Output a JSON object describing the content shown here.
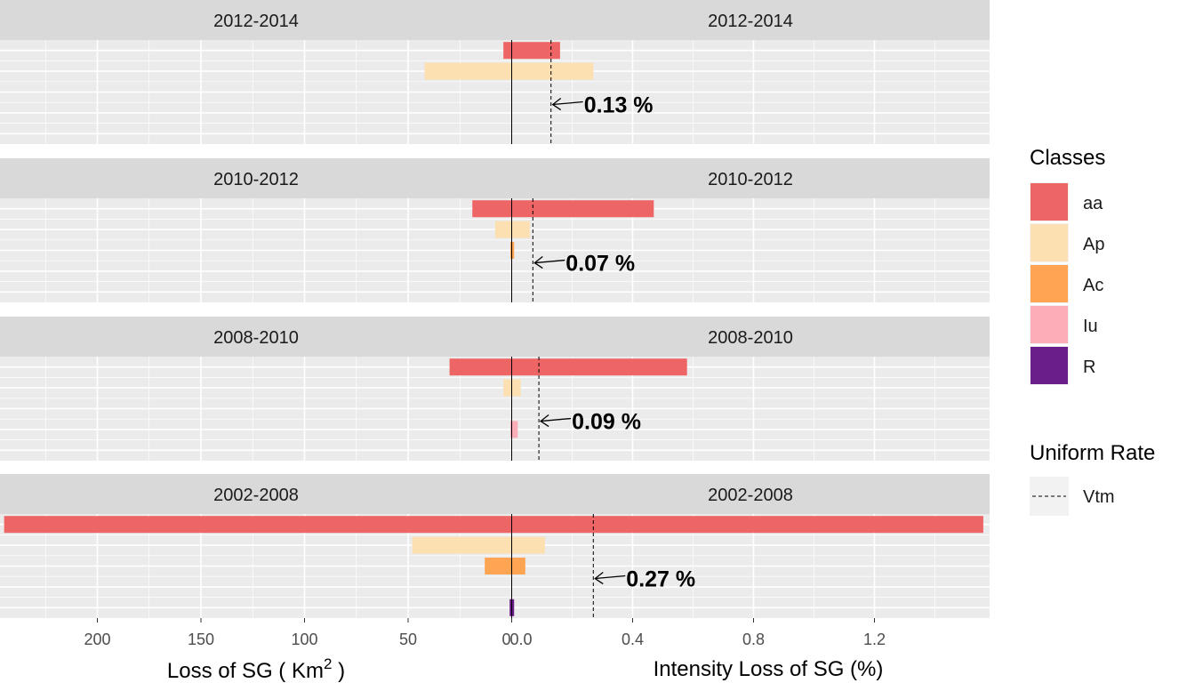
{
  "chart_data": {
    "type": "bar",
    "orientation": "horizontal",
    "layout": "back-to-back faceted",
    "classes": [
      {
        "name": "aa",
        "color": "#EE6566"
      },
      {
        "name": "Ap",
        "color": "#FDE0B2"
      },
      {
        "name": "Ac",
        "color": "#FEA452"
      },
      {
        "name": "Iu",
        "color": "#FDADB8"
      },
      {
        "name": "R",
        "color": "#6A1E8A"
      }
    ],
    "left_axis": {
      "label_prefix": "Loss of SG ( Km",
      "label_sup": "2",
      "label_suffix": " )",
      "ticks": [
        200,
        150,
        100,
        50,
        0
      ],
      "tick_labels": [
        "200",
        "150",
        "100",
        "50",
        "0"
      ],
      "range": [
        0,
        250
      ]
    },
    "right_axis": {
      "label": "Intensity Loss of SG (%)",
      "ticks": [
        0.0,
        0.4,
        0.8,
        1.2
      ],
      "tick_labels": [
        "0.0",
        "0.4",
        "0.8",
        "1.2"
      ],
      "range": [
        0,
        1.55
      ]
    },
    "panels": [
      {
        "period": "2012-2014",
        "uniform_rate": 0.13,
        "annotation": "0.13 %",
        "loss_km2": [
          {
            "class": "aa",
            "value": 4
          },
          {
            "class": "Ap",
            "value": 42
          }
        ],
        "intensity_pct": [
          {
            "class": "aa",
            "value": 0.16
          },
          {
            "class": "Ap",
            "value": 0.27
          }
        ]
      },
      {
        "period": "2010-2012",
        "uniform_rate": 0.07,
        "annotation": "0.07 %",
        "loss_km2": [
          {
            "class": "aa",
            "value": 19
          },
          {
            "class": "Ap",
            "value": 8
          },
          {
            "class": "Ac",
            "value": 0.4
          }
        ],
        "intensity_pct": [
          {
            "class": "aa",
            "value": 0.47
          },
          {
            "class": "Ap",
            "value": 0.06
          },
          {
            "class": "Ac",
            "value": 0.008
          }
        ]
      },
      {
        "period": "2008-2010",
        "uniform_rate": 0.09,
        "annotation": "0.09 %",
        "loss_km2": [
          {
            "class": "aa",
            "value": 30
          },
          {
            "class": "Ap",
            "value": 4
          },
          {
            "class": "Iu",
            "value": 0.5
          }
        ],
        "intensity_pct": [
          {
            "class": "aa",
            "value": 0.58
          },
          {
            "class": "Ap",
            "value": 0.03
          },
          {
            "class": "Iu",
            "value": 0.02
          }
        ]
      },
      {
        "period": "2002-2008",
        "uniform_rate": 0.27,
        "annotation": "0.27 %",
        "loss_km2": [
          {
            "class": "aa",
            "value": 245
          },
          {
            "class": "Ap",
            "value": 48
          },
          {
            "class": "Ac",
            "value": 13
          },
          {
            "class": "R",
            "value": 1
          }
        ],
        "intensity_pct": [
          {
            "class": "aa",
            "value": 1.56
          },
          {
            "class": "Ap",
            "value": 0.11
          },
          {
            "class": "Ac",
            "value": 0.045
          },
          {
            "class": "R",
            "value": 0.008
          }
        ]
      }
    ],
    "legend": {
      "title": "Classes",
      "position": "right",
      "uniform_title": "Uniform Rate",
      "uniform_label": "Vtm"
    },
    "grid": true,
    "panel_background": "#EBEBEB",
    "strip_background": "#D9D9D9"
  }
}
